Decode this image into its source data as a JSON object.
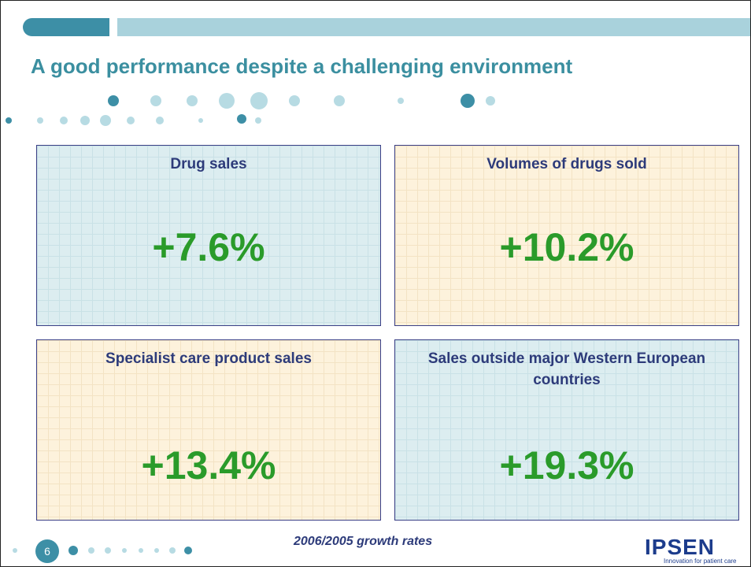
{
  "header": {
    "title": "A good performance despite a challenging environment"
  },
  "cards": [
    {
      "label": "Drug sales",
      "value": "+7.6%"
    },
    {
      "label": "Volumes of drugs sold",
      "value": "+10.2%"
    },
    {
      "label": "Specialist care product sales",
      "value": "+13.4%"
    },
    {
      "label": "Sales outside major Western European countries",
      "value": "+19.3%"
    }
  ],
  "footer": {
    "page": "6",
    "note": "2006/2005 growth rates",
    "logo": "IPSEN",
    "tagline": "Innovation for patient care"
  }
}
